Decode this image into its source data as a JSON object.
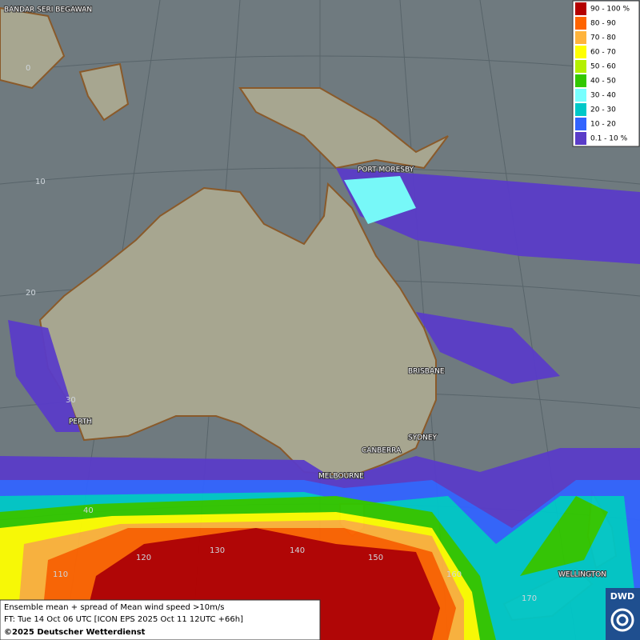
{
  "map": {
    "places": [
      "BANDAR SERI BEGAWAN",
      "PORT MORESBY",
      "BRISBANE",
      "PERTH",
      "SYDNEY",
      "CANBERRA",
      "MELBOURNE",
      "WELLINGTON"
    ],
    "grid_labels": [
      "0",
      "10",
      "20",
      "30",
      "40",
      "110",
      "120",
      "130",
      "140",
      "150",
      "160",
      "170"
    ],
    "legend": [
      {
        "label": "90 - 100 %",
        "color": "#b40000"
      },
      {
        "label": "80 - 90",
        "color": "#ff6400"
      },
      {
        "label": "70 - 80",
        "color": "#ffb43c"
      },
      {
        "label": "60 - 70",
        "color": "#ffff00"
      },
      {
        "label": "50 - 60",
        "color": "#b4f000"
      },
      {
        "label": "40 - 50",
        "color": "#32c800"
      },
      {
        "label": "30 - 40",
        "color": "#78ffff"
      },
      {
        "label": "20 - 30",
        "color": "#00c8c8"
      },
      {
        "label": "10 - 20",
        "color": "#3264ff"
      },
      {
        "label": "0.1 - 10 %",
        "color": "#5a3cc8"
      }
    ],
    "caption": [
      "Ensemble mean + spread of Mean wind speed >10m/s",
      "FT: Tue 14 Oct 06 UTC [ICON EPS 2025 Oct 11 12UTC +66h]",
      "©2025 Deutscher Wetterdienst"
    ],
    "logo": "DWD"
  }
}
